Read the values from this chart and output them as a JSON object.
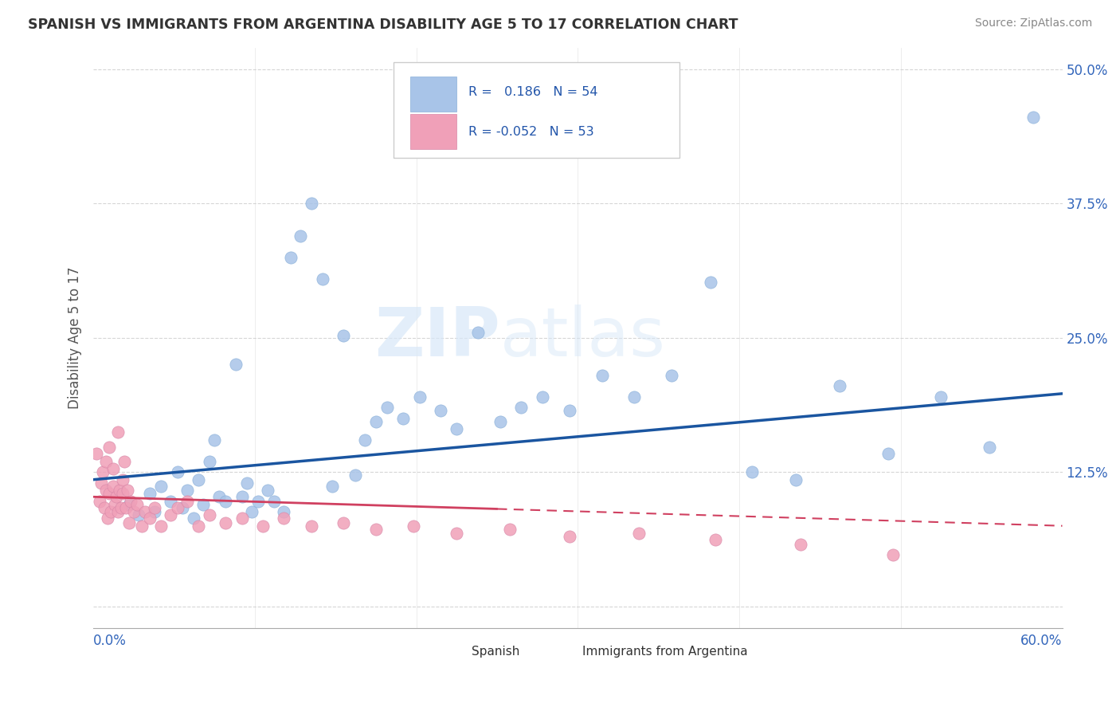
{
  "title": "SPANISH VS IMMIGRANTS FROM ARGENTINA DISABILITY AGE 5 TO 17 CORRELATION CHART",
  "source": "Source: ZipAtlas.com",
  "ylabel": "Disability Age 5 to 17",
  "xlim": [
    0.0,
    0.6
  ],
  "ylim": [
    -0.02,
    0.52
  ],
  "ytick_vals": [
    0.0,
    0.125,
    0.25,
    0.375,
    0.5
  ],
  "ytick_labels": [
    "",
    "12.5%",
    "25.0%",
    "37.5%",
    "50.0%"
  ],
  "blue_color": "#a8c4e8",
  "pink_color": "#f0a0b8",
  "blue_line_color": "#1a55a0",
  "pink_line_color": "#d04060",
  "background_color": "#ffffff",
  "grid_color": "#cccccc",
  "spanish_x": [
    0.022,
    0.028,
    0.035,
    0.038,
    0.042,
    0.048,
    0.052,
    0.055,
    0.058,
    0.062,
    0.065,
    0.068,
    0.072,
    0.075,
    0.078,
    0.082,
    0.088,
    0.092,
    0.095,
    0.098,
    0.102,
    0.108,
    0.112,
    0.118,
    0.122,
    0.128,
    0.135,
    0.142,
    0.148,
    0.155,
    0.162,
    0.168,
    0.175,
    0.182,
    0.192,
    0.202,
    0.215,
    0.225,
    0.238,
    0.252,
    0.265,
    0.278,
    0.295,
    0.315,
    0.335,
    0.358,
    0.382,
    0.408,
    0.435,
    0.462,
    0.492,
    0.525,
    0.555,
    0.582
  ],
  "spanish_y": [
    0.095,
    0.085,
    0.105,
    0.088,
    0.112,
    0.098,
    0.125,
    0.092,
    0.108,
    0.082,
    0.118,
    0.095,
    0.135,
    0.155,
    0.102,
    0.098,
    0.225,
    0.102,
    0.115,
    0.088,
    0.098,
    0.108,
    0.098,
    0.088,
    0.325,
    0.345,
    0.375,
    0.305,
    0.112,
    0.252,
    0.122,
    0.155,
    0.172,
    0.185,
    0.175,
    0.195,
    0.182,
    0.165,
    0.255,
    0.172,
    0.185,
    0.195,
    0.182,
    0.215,
    0.195,
    0.215,
    0.302,
    0.125,
    0.118,
    0.205,
    0.142,
    0.195,
    0.148,
    0.455
  ],
  "argentina_x": [
    0.002,
    0.004,
    0.005,
    0.006,
    0.007,
    0.008,
    0.008,
    0.009,
    0.01,
    0.01,
    0.011,
    0.012,
    0.012,
    0.013,
    0.014,
    0.015,
    0.015,
    0.016,
    0.017,
    0.018,
    0.018,
    0.019,
    0.02,
    0.021,
    0.022,
    0.023,
    0.025,
    0.027,
    0.03,
    0.032,
    0.035,
    0.038,
    0.042,
    0.048,
    0.052,
    0.058,
    0.065,
    0.072,
    0.082,
    0.092,
    0.105,
    0.118,
    0.135,
    0.155,
    0.175,
    0.198,
    0.225,
    0.258,
    0.295,
    0.338,
    0.385,
    0.438,
    0.495
  ],
  "argentina_y": [
    0.142,
    0.098,
    0.115,
    0.125,
    0.092,
    0.108,
    0.135,
    0.082,
    0.105,
    0.148,
    0.088,
    0.112,
    0.128,
    0.095,
    0.102,
    0.162,
    0.088,
    0.108,
    0.092,
    0.105,
    0.118,
    0.135,
    0.092,
    0.108,
    0.078,
    0.098,
    0.088,
    0.095,
    0.075,
    0.088,
    0.082,
    0.092,
    0.075,
    0.085,
    0.092,
    0.098,
    0.075,
    0.085,
    0.078,
    0.082,
    0.075,
    0.082,
    0.075,
    0.078,
    0.072,
    0.075,
    0.068,
    0.072,
    0.065,
    0.068,
    0.062,
    0.058,
    0.048
  ],
  "blue_line_x0": 0.0,
  "blue_line_x1": 0.6,
  "blue_line_y0": 0.118,
  "blue_line_y1": 0.198,
  "pink_line_x0": 0.0,
  "pink_line_x1": 0.6,
  "pink_line_y0": 0.102,
  "pink_line_y1": 0.075
}
